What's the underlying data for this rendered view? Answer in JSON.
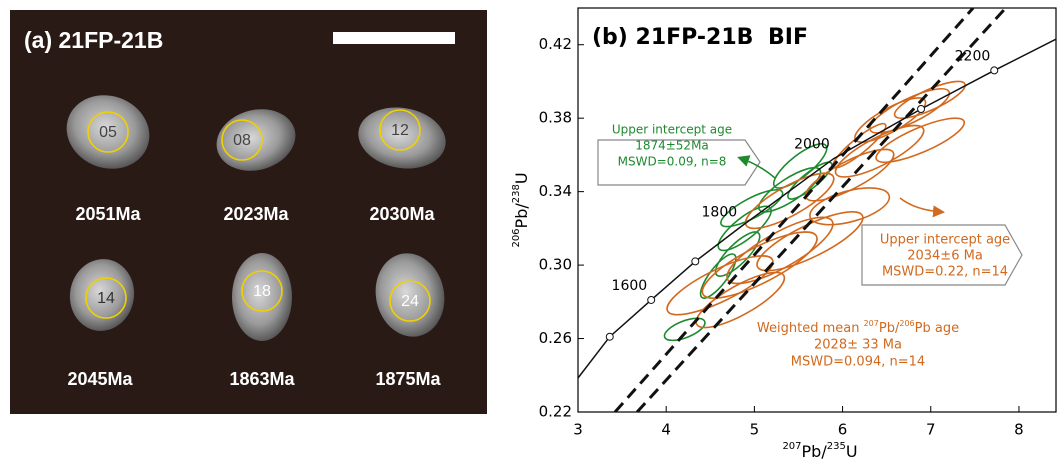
{
  "photo_panel": {
    "title": "(a) 21FP-21B",
    "grains": [
      {
        "spot": "05",
        "age": "2051Ma"
      },
      {
        "spot": "08",
        "age": "2023Ma"
      },
      {
        "spot": "12",
        "age": "2030Ma"
      },
      {
        "spot": "14",
        "age": "2045Ma"
      },
      {
        "spot": "18",
        "age": "1863Ma"
      },
      {
        "spot": "24",
        "age": "1875Ma"
      }
    ]
  },
  "chart_data": {
    "type": "concordia",
    "title_parts": [
      "(b) 21FP-21B",
      "BIF"
    ],
    "x_label": [
      "207",
      "Pb/",
      "235",
      "U"
    ],
    "y_label": [
      "206",
      "Pb/",
      "238",
      "U"
    ],
    "xlim": [
      3,
      8.42
    ],
    "ylim": [
      0.22,
      0.44
    ],
    "xticks": [
      3,
      4,
      5,
      6,
      7,
      8
    ],
    "yticks": [
      0.22,
      0.26,
      {
        "value": 0.3,
        "label": "0.30"
      },
      0.34,
      0.38,
      0.42
    ],
    "concordia": {
      "x": [
        3,
        3.36,
        3.83,
        4.33,
        4.85,
        5.9,
        6.89,
        7.72,
        8.42
      ],
      "y": [
        0.2385,
        0.261,
        0.281,
        0.302,
        0.321,
        0.358,
        0.385,
        0.406,
        0.423
      ]
    },
    "markers": {
      "x": [
        3.36,
        3.83,
        4.33,
        6.89,
        7.72
      ],
      "y": [
        0.261,
        0.281,
        0.302,
        0.385,
        0.406
      ]
    },
    "age_labels": {
      "labels": [
        1600,
        1800,
        2000,
        2200
      ],
      "x": [
        3.83,
        4.85,
        5.9,
        7.72
      ],
      "y": [
        0.281,
        0.321,
        0.358,
        0.406
      ]
    },
    "discordia_lines": [
      {
        "x": [
          3.42,
          7.48
        ],
        "y": [
          0.22,
          0.44
        ]
      },
      {
        "x": [
          3.67,
          7.85
        ],
        "y": [
          0.22,
          0.44
        ]
      }
    ],
    "ellipse_groups": [
      {
        "color": "#1e8a2e",
        "ellipses": [
          {
            "x": 4.21,
            "y": 0.265,
            "x_err": 0.23,
            "y_err": 0.006,
            "rho": 0.6
          },
          {
            "x": 4.59,
            "y": 0.294,
            "x_err": 0.2,
            "y_err": 0.012,
            "rho": 0.8
          },
          {
            "x": 4.81,
            "y": 0.306,
            "x_err": 0.25,
            "y_err": 0.012,
            "rho": 0.8
          },
          {
            "x": 4.89,
            "y": 0.32,
            "x_err": 0.3,
            "y_err": 0.012,
            "rho": 0.8
          },
          {
            "x": 4.97,
            "y": 0.331,
            "x_err": 0.35,
            "y_err": 0.01,
            "rho": 0.8
          },
          {
            "x": 5.4,
            "y": 0.341,
            "x_err": 0.35,
            "y_err": 0.012,
            "rho": 0.8
          },
          {
            "x": 5.52,
            "y": 0.354,
            "x_err": 0.3,
            "y_err": 0.012,
            "rho": 0.8
          },
          {
            "x": 5.63,
            "y": 0.346,
            "x_err": 0.25,
            "y_err": 0.01,
            "rho": 0.85
          }
        ]
      },
      {
        "color": "#d2691e",
        "ellipses": [
          {
            "x": 4.61,
            "y": 0.289,
            "x_err": 0.6,
            "y_err": 0.016,
            "rho": 0.8
          },
          {
            "x": 5.06,
            "y": 0.3,
            "x_err": 0.65,
            "y_err": 0.018,
            "rho": 0.8
          },
          {
            "x": 5.29,
            "y": 0.308,
            "x_err": 0.6,
            "y_err": 0.018,
            "rho": 0.8
          },
          {
            "x": 5.4,
            "y": 0.335,
            "x_err": 0.5,
            "y_err": 0.015,
            "rho": 0.8
          },
          {
            "x": 6.08,
            "y": 0.332,
            "x_err": 0.45,
            "y_err": 0.01,
            "rho": 0.5
          },
          {
            "x": 6.08,
            "y": 0.349,
            "x_err": 0.5,
            "y_err": 0.014,
            "rho": 0.8
          },
          {
            "x": 6.42,
            "y": 0.362,
            "x_err": 0.5,
            "y_err": 0.014,
            "rho": 0.8
          },
          {
            "x": 6.54,
            "y": 0.379,
            "x_err": 0.4,
            "y_err": 0.012,
            "rho": 0.8
          },
          {
            "x": 6.76,
            "y": 0.384,
            "x_err": 0.45,
            "y_err": 0.012,
            "rho": 0.8
          },
          {
            "x": 6.88,
            "y": 0.368,
            "x_err": 0.5,
            "y_err": 0.012,
            "rho": 0.8
          },
          {
            "x": 6.99,
            "y": 0.39,
            "x_err": 0.4,
            "y_err": 0.01,
            "rho": 0.8
          },
          {
            "x": 6.19,
            "y": 0.365,
            "x_err": 0.3,
            "y_err": 0.012,
            "rho": 0.9
          },
          {
            "x": 4.84,
            "y": 0.281,
            "x_err": 0.5,
            "y_err": 0.015,
            "rho": 0.8
          },
          {
            "x": 5.63,
            "y": 0.313,
            "x_err": 0.6,
            "y_err": 0.016,
            "rho": 0.8
          }
        ]
      }
    ],
    "annotations": {
      "green_box": [
        "Upper intercept age",
        "1874±52Ma",
        "MSWD=0.09, n=8"
      ],
      "orange_box": [
        "Upper intercept age",
        "2034±6 Ma",
        "MSWD=0.22,  n=14"
      ],
      "weighted_mean": [
        "Weighted mean ",
        "207",
        "Pb/",
        "206",
        "Pb age"
      ],
      "weighted_lines": [
        "2028± 33 Ma",
        "MSWD=0.094, n=14"
      ]
    }
  }
}
